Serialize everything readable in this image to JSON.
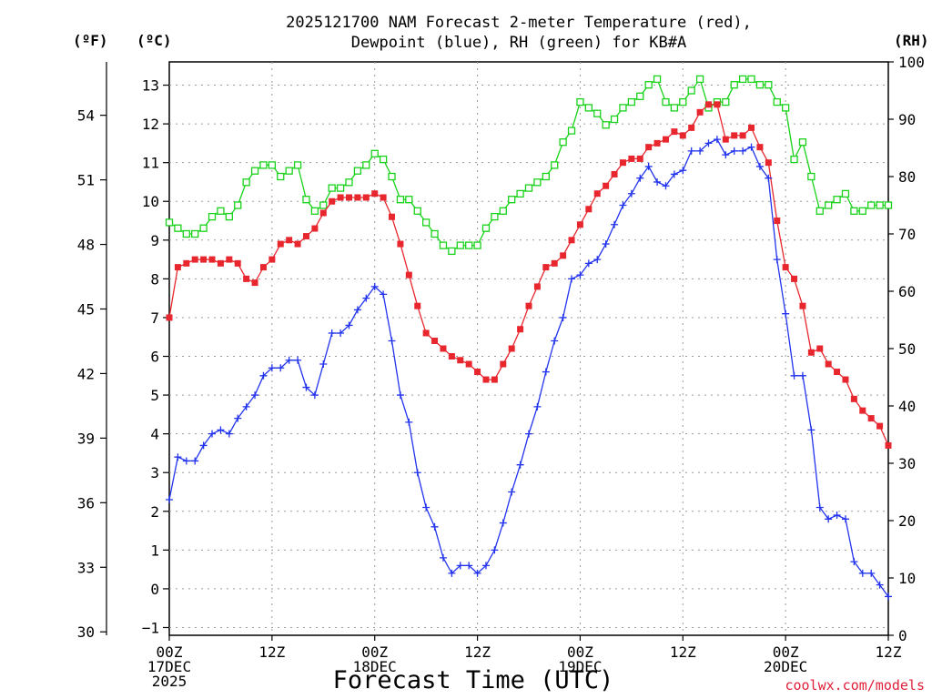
{
  "header": {
    "title_line1": "2025121700 NAM Forecast 2-meter Temperature (red),",
    "title_line2": "Dewpoint (blue), RH (green) for KB#A",
    "unit_f": "(ºF)",
    "unit_c": "(ºC)",
    "unit_rh": "(RH)"
  },
  "footer": {
    "xlabel": "Forecast Time (UTC)",
    "credit": "coolwx.com/models"
  },
  "chart_data": {
    "type": "line",
    "title": "2025121700 NAM Forecast 2-meter Temperature (red), Dewpoint (blue), RH (green) for KB#A",
    "xlabel": "Forecast Time (UTC)",
    "ylabel_left_c": "(ºC)",
    "ylabel_left_f": "(ºF)",
    "ylabel_right": "(RH)",
    "grid": true,
    "x_hours_range": [
      0,
      84
    ],
    "ylim_c": [
      -1.2,
      13.6
    ],
    "ylim_rh": [
      0,
      100
    ],
    "x_ticks": [
      {
        "h": 0,
        "lines": [
          "00Z",
          "17DEC",
          "2025"
        ]
      },
      {
        "h": 12,
        "lines": [
          "12Z"
        ]
      },
      {
        "h": 24,
        "lines": [
          "00Z",
          "18DEC"
        ]
      },
      {
        "h": 36,
        "lines": [
          "12Z"
        ]
      },
      {
        "h": 48,
        "lines": [
          "00Z",
          "19DEC"
        ]
      },
      {
        "h": 60,
        "lines": [
          "12Z"
        ]
      },
      {
        "h": 72,
        "lines": [
          "00Z",
          "20DEC"
        ]
      },
      {
        "h": 84,
        "lines": [
          "12Z"
        ]
      }
    ],
    "y_ticks_c": [
      "−1",
      "0",
      "1",
      "2",
      "3",
      "4",
      "5",
      "6",
      "7",
      "8",
      "9",
      "10",
      "11",
      "12",
      "13"
    ],
    "y_ticks_f": [
      {
        "label": "30",
        "f": 30
      },
      {
        "label": "33",
        "f": 33
      },
      {
        "label": "36",
        "f": 36
      },
      {
        "label": "39",
        "f": 39
      },
      {
        "label": "42",
        "f": 42
      },
      {
        "label": "45",
        "f": 45
      },
      {
        "label": "48",
        "f": 48
      },
      {
        "label": "51",
        "f": 51
      },
      {
        "label": "54",
        "f": 54
      }
    ],
    "y_ticks_rh": [
      "0",
      "10",
      "20",
      "30",
      "40",
      "50",
      "60",
      "70",
      "80",
      "90",
      "100"
    ],
    "series": [
      {
        "name": "Temperature",
        "axis": "c",
        "color": "#e8262e",
        "marker": "filled-square",
        "values": [
          7.0,
          8.3,
          8.4,
          8.5,
          8.5,
          8.5,
          8.4,
          8.5,
          8.4,
          8.0,
          7.9,
          8.3,
          8.5,
          8.9,
          9.0,
          8.9,
          9.1,
          9.3,
          9.7,
          10.0,
          10.1,
          10.1,
          10.1,
          10.1,
          10.2,
          10.1,
          9.6,
          8.9,
          8.1,
          7.3,
          6.6,
          6.4,
          6.2,
          6.0,
          5.9,
          5.8,
          5.6,
          5.4,
          5.4,
          5.8,
          6.2,
          6.7,
          7.3,
          7.8,
          8.3,
          8.4,
          8.6,
          9.0,
          9.4,
          9.8,
          10.2,
          10.4,
          10.7,
          11.0,
          11.1,
          11.1,
          11.4,
          11.5,
          11.6,
          11.8,
          11.7,
          11.9,
          12.3,
          12.5,
          12.5,
          11.6,
          11.7,
          11.7,
          11.9,
          11.4,
          11.0,
          9.5,
          8.3,
          8.0,
          7.3,
          6.1,
          6.2,
          5.8,
          5.6,
          5.4,
          4.9,
          4.6,
          4.4,
          4.2,
          3.7
        ]
      },
      {
        "name": "Dewpoint",
        "axis": "c",
        "color": "#2233ee",
        "marker": "plus",
        "values": [
          2.3,
          3.4,
          3.3,
          3.3,
          3.7,
          4.0,
          4.1,
          4.0,
          4.4,
          4.7,
          5.0,
          5.5,
          5.7,
          5.7,
          5.9,
          5.9,
          5.2,
          5.0,
          5.8,
          6.6,
          6.6,
          6.8,
          7.2,
          7.5,
          7.8,
          7.6,
          6.4,
          5.0,
          4.3,
          3.0,
          2.1,
          1.6,
          0.8,
          0.4,
          0.6,
          0.6,
          0.4,
          0.6,
          1.0,
          1.7,
          2.5,
          3.2,
          4.0,
          4.7,
          5.6,
          6.4,
          7.0,
          8.0,
          8.1,
          8.4,
          8.5,
          8.9,
          9.4,
          9.9,
          10.2,
          10.6,
          10.9,
          10.5,
          10.4,
          10.7,
          10.8,
          11.3,
          11.3,
          11.5,
          11.6,
          11.2,
          11.3,
          11.3,
          11.4,
          10.9,
          10.6,
          8.5,
          7.1,
          5.5,
          5.5,
          4.1,
          2.1,
          1.8,
          1.9,
          1.8,
          0.7,
          0.4,
          0.4,
          0.1,
          -0.2
        ]
      },
      {
        "name": "RH",
        "axis": "rh",
        "color": "#19d21a",
        "marker": "open-square",
        "values": [
          72,
          71,
          70,
          70,
          71,
          73,
          74,
          73,
          75,
          79,
          81,
          82,
          82,
          80,
          81,
          82,
          76,
          74,
          75,
          78,
          78,
          79,
          81,
          82,
          84,
          83,
          80,
          76,
          76,
          74,
          72,
          70,
          68,
          67,
          68,
          68,
          68,
          71,
          73,
          74,
          76,
          77,
          78,
          79,
          80,
          82,
          86,
          88,
          93,
          92,
          91,
          89,
          90,
          92,
          93,
          94,
          96,
          97,
          93,
          92,
          93,
          95,
          97,
          92,
          93,
          93,
          96,
          97,
          97,
          96,
          96,
          93,
          92,
          83,
          86,
          80,
          74,
          75,
          76,
          77,
          74,
          74,
          75,
          75,
          75
        ]
      }
    ]
  }
}
